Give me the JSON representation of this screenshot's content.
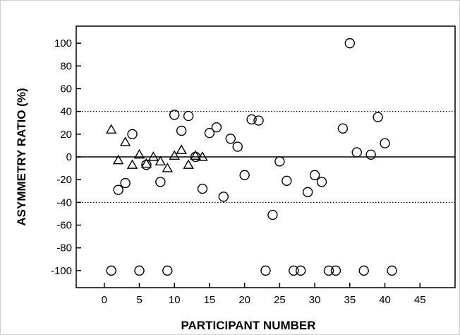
{
  "chart_data": {
    "type": "scatter",
    "xlabel": "PARTICIPANT NUMBER",
    "ylabel": "ASYMMETRY RATIO (%)",
    "xlim": [
      -4,
      50
    ],
    "ylim": [
      -115,
      115
    ],
    "x_ticks": [
      0,
      5,
      10,
      15,
      20,
      25,
      30,
      35,
      40,
      45
    ],
    "y_ticks": [
      -100,
      -80,
      -60,
      -40,
      -20,
      0,
      20,
      40,
      60,
      80,
      100
    ],
    "grid": false,
    "reference_lines": [
      {
        "y": 40,
        "style": "dotted"
      },
      {
        "y": 0,
        "style": "solid"
      },
      {
        "y": -40,
        "style": "dotted"
      }
    ],
    "series": [
      {
        "marker": "circle",
        "points": [
          [
            1,
            -100
          ],
          [
            2,
            -29
          ],
          [
            3,
            -23
          ],
          [
            4,
            20
          ],
          [
            5,
            -100
          ],
          [
            6,
            -7
          ],
          [
            8,
            -22
          ],
          [
            9,
            -100
          ],
          [
            10,
            37
          ],
          [
            11,
            23
          ],
          [
            12,
            36
          ],
          [
            13,
            0
          ],
          [
            14,
            -28
          ],
          [
            15,
            21
          ],
          [
            16,
            26
          ],
          [
            17,
            -35
          ],
          [
            18,
            16
          ],
          [
            19,
            9
          ],
          [
            20,
            -16
          ],
          [
            21,
            33
          ],
          [
            22,
            32
          ],
          [
            23,
            -100
          ],
          [
            24,
            -51
          ],
          [
            25,
            -4
          ],
          [
            26,
            -21
          ],
          [
            27,
            -100
          ],
          [
            28,
            -100
          ],
          [
            29,
            -31
          ],
          [
            30,
            -16
          ],
          [
            31,
            -22
          ],
          [
            32,
            -100
          ],
          [
            33,
            -100
          ],
          [
            34,
            25
          ],
          [
            35,
            100
          ],
          [
            36,
            4
          ],
          [
            37,
            -100
          ],
          [
            38,
            2
          ],
          [
            39,
            35
          ],
          [
            40,
            12
          ],
          [
            41,
            -100
          ]
        ]
      },
      {
        "marker": "triangle",
        "points": [
          [
            1,
            24
          ],
          [
            2,
            -3
          ],
          [
            3,
            13
          ],
          [
            4,
            -7
          ],
          [
            5,
            2
          ],
          [
            6,
            -6
          ],
          [
            7,
            0
          ],
          [
            8,
            -4
          ],
          [
            9,
            -10
          ],
          [
            10,
            1
          ],
          [
            11,
            6
          ],
          [
            12,
            -7
          ],
          [
            13,
            1
          ],
          [
            14,
            0
          ]
        ]
      }
    ]
  }
}
